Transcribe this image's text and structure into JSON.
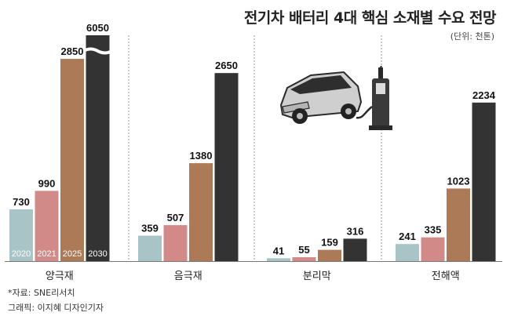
{
  "chart_data": {
    "type": "bar",
    "title": "전기차 배터리 4대 핵심 소재별 수요 전망",
    "unit": "(단위: 천톤)",
    "categories": [
      "양극재",
      "음극재",
      "분리막",
      "전해액"
    ],
    "series": [
      {
        "name": "2020",
        "color": "#a9c4c6",
        "values": [
          730,
          359,
          41,
          241
        ]
      },
      {
        "name": "2021",
        "color": "#d28a88",
        "values": [
          990,
          507,
          55,
          335
        ]
      },
      {
        "name": "2025",
        "color": "#ad7a57",
        "values": [
          2850,
          1380,
          159,
          1023
        ]
      },
      {
        "name": "2030",
        "color": "#333333",
        "values": [
          6050,
          2650,
          316,
          2234
        ]
      }
    ],
    "axis_break": {
      "category": "양극재",
      "series": "2030"
    },
    "grid": false
  },
  "footer": {
    "source": "*자료: SNE리서치",
    "credit": "그래픽: 이지혜 디자인기자"
  },
  "illustration": "electric-car-charging"
}
